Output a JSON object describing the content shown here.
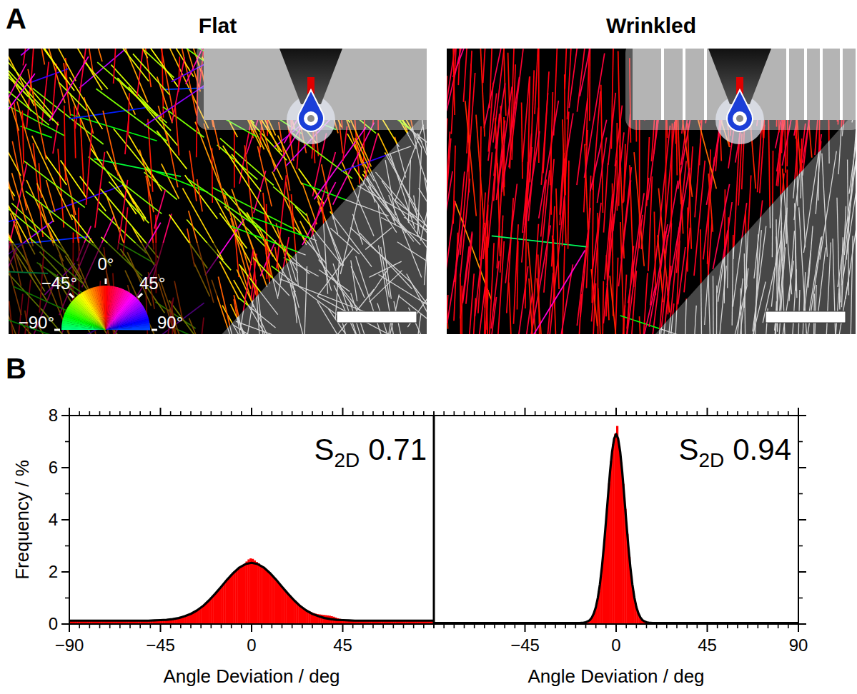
{
  "panel_a": {
    "label": "A",
    "images": [
      {
        "title": "Flat"
      },
      {
        "title": "Wrinkled"
      }
    ],
    "color_wheel": {
      "ticks": [
        {
          "value": 0,
          "label": "0°"
        },
        {
          "value": -45,
          "label": "−45°"
        },
        {
          "value": 45,
          "label": "45°"
        },
        {
          "value": -90,
          "label": "−90°"
        },
        {
          "value": 90,
          "label": "90°"
        }
      ]
    }
  },
  "panel_b": {
    "label": "B"
  },
  "chart_data": [
    {
      "type": "histogram",
      "ylabel": "Frequency / %",
      "xlabel": "Angle Deviation / deg",
      "stat_symbol": "S",
      "stat_subscript": "2D",
      "stat_value": 0.71,
      "xlim": [
        -90,
        90
      ],
      "ylim": [
        0,
        8
      ],
      "xticks": [
        {
          "value": -90,
          "label": "−90"
        },
        {
          "value": -45,
          "label": "−45"
        },
        0,
        45
      ],
      "yticks": [
        0,
        2,
        4,
        6,
        8
      ],
      "color": "#ff0000",
      "bins": [
        -90,
        -89,
        -88,
        -87,
        -86,
        -85,
        -84,
        -83,
        -82,
        -81,
        -80,
        -79,
        -78,
        -77,
        -76,
        -75,
        -74,
        -73,
        -72,
        -71,
        -70,
        -69,
        -68,
        -67,
        -66,
        -65,
        -64,
        -63,
        -62,
        -61,
        -60,
        -59,
        -58,
        -57,
        -56,
        -55,
        -54,
        -53,
        -52,
        -51,
        -50,
        -49,
        -48,
        -47,
        -46,
        -45,
        -44,
        -43,
        -42,
        -41,
        -40,
        -39,
        -38,
        -37,
        -36,
        -35,
        -34,
        -33,
        -32,
        -31,
        -30,
        -29,
        -28,
        -27,
        -26,
        -25,
        -24,
        -23,
        -22,
        -21,
        -20,
        -19,
        -18,
        -17,
        -16,
        -15,
        -14,
        -13,
        -12,
        -11,
        -10,
        -9,
        -8,
        -7,
        -6,
        -5,
        -4,
        -3,
        -2,
        -1,
        0,
        1,
        2,
        3,
        4,
        5,
        6,
        7,
        8,
        9,
        10,
        11,
        12,
        13,
        14,
        15,
        16,
        17,
        18,
        19,
        20,
        21,
        22,
        23,
        24,
        25,
        26,
        27,
        28,
        29,
        30,
        31,
        32,
        33,
        34,
        35,
        36,
        37,
        38,
        39,
        40,
        41,
        42,
        43,
        44,
        45,
        46,
        47,
        48,
        49,
        50,
        51,
        52,
        53,
        54,
        55,
        56,
        57,
        58,
        59,
        60,
        61,
        62,
        63,
        64,
        65,
        66,
        67,
        68,
        69,
        70,
        71,
        72,
        73,
        74,
        75,
        76,
        77,
        78,
        79,
        80,
        81,
        82,
        83,
        84,
        85,
        86,
        87,
        88,
        89,
        90
      ],
      "values": [
        0.12,
        0.13,
        0.12,
        0.14,
        0.13,
        0.12,
        0.13,
        0.14,
        0.12,
        0.13,
        0.13,
        0.12,
        0.14,
        0.13,
        0.12,
        0.13,
        0.13,
        0.14,
        0.12,
        0.13,
        0.14,
        0.13,
        0.12,
        0.13,
        0.14,
        0.13,
        0.12,
        0.14,
        0.13,
        0.13,
        0.14,
        0.13,
        0.14,
        0.12,
        0.14,
        0.13,
        0.15,
        0.13,
        0.14,
        0.14,
        0.13,
        0.14,
        0.14,
        0.15,
        0.14,
        0.15,
        0.16,
        0.15,
        0.17,
        0.17,
        0.19,
        0.2,
        0.21,
        0.22,
        0.23,
        0.26,
        0.28,
        0.3,
        0.34,
        0.38,
        0.4,
        0.46,
        0.49,
        0.56,
        0.59,
        0.67,
        0.72,
        0.81,
        0.86,
        0.96,
        1.02,
        1.12,
        1.19,
        1.3,
        1.37,
        1.49,
        1.56,
        1.67,
        1.74,
        1.85,
        1.91,
        2.02,
        2.06,
        2.16,
        2.18,
        2.27,
        2.31,
        2.4,
        2.48,
        2.52,
        2.5,
        2.44,
        2.38,
        2.33,
        2.26,
        2.2,
        2.12,
        2.05,
        1.98,
        1.9,
        1.82,
        1.74,
        1.64,
        1.55,
        1.47,
        1.37,
        1.28,
        1.19,
        1.1,
        1.03,
        0.95,
        0.88,
        0.8,
        0.74,
        0.67,
        0.62,
        0.57,
        0.52,
        0.48,
        0.45,
        0.42,
        0.4,
        0.38,
        0.37,
        0.36,
        0.35,
        0.34,
        0.33,
        0.32,
        0.3,
        0.28,
        0.25,
        0.22,
        0.2,
        0.18,
        0.17,
        0.16,
        0.15,
        0.15,
        0.14,
        0.15,
        0.14,
        0.13,
        0.14,
        0.15,
        0.14,
        0.13,
        0.14,
        0.14,
        0.13,
        0.15,
        0.14,
        0.13,
        0.14,
        0.13,
        0.14,
        0.15,
        0.13,
        0.14,
        0.13,
        0.14,
        0.13,
        0.12,
        0.14,
        0.13,
        0.13,
        0.14,
        0.12,
        0.13,
        0.14,
        0.12,
        0.13,
        0.13,
        0.12,
        0.14,
        0.13,
        0.12,
        0.13,
        0.12,
        0.13
      ],
      "fit": {
        "color": "#000000",
        "x": [
          -90,
          -87,
          -84,
          -81,
          -78,
          -75,
          -72,
          -69,
          -66,
          -63,
          -60,
          -57,
          -54,
          -51,
          -48,
          -45,
          -42,
          -39,
          -36,
          -33,
          -30,
          -27,
          -24,
          -21,
          -18,
          -15,
          -12,
          -9,
          -6,
          -3,
          0,
          3,
          6,
          9,
          12,
          15,
          18,
          21,
          24,
          27,
          30,
          33,
          36,
          39,
          42,
          45,
          48,
          51,
          54,
          57,
          60,
          63,
          66,
          69,
          72,
          75,
          78,
          81,
          84,
          87,
          90
        ],
        "values": [
          0.13,
          0.13,
          0.13,
          0.13,
          0.13,
          0.13,
          0.13,
          0.13,
          0.13,
          0.13,
          0.13,
          0.13,
          0.13,
          0.13,
          0.14,
          0.15,
          0.16,
          0.19,
          0.23,
          0.3,
          0.39,
          0.52,
          0.69,
          0.91,
          1.16,
          1.43,
          1.71,
          1.96,
          2.17,
          2.3,
          2.35,
          2.3,
          2.17,
          1.96,
          1.71,
          1.43,
          1.16,
          0.91,
          0.69,
          0.52,
          0.39,
          0.3,
          0.23,
          0.19,
          0.16,
          0.15,
          0.14,
          0.13,
          0.13,
          0.13,
          0.13,
          0.13,
          0.13,
          0.13,
          0.13,
          0.13,
          0.13,
          0.13,
          0.13,
          0.13,
          0.13
        ]
      }
    },
    {
      "type": "histogram",
      "xlabel": "Angle Deviation / deg",
      "stat_symbol": "S",
      "stat_subscript": "2D",
      "stat_value": 0.94,
      "xlim": [
        -90,
        90
      ],
      "ylim": [
        0,
        8
      ],
      "xticks": [
        {
          "value": -45,
          "label": "−45"
        },
        0,
        45,
        90
      ],
      "yticks": [
        0,
        2,
        4,
        6,
        8
      ],
      "tick_labels": "x",
      "color": "#ff0000",
      "bins": [
        -90,
        -89,
        -88,
        -87,
        -86,
        -85,
        -84,
        -83,
        -82,
        -81,
        -80,
        -79,
        -78,
        -77,
        -76,
        -75,
        -74,
        -73,
        -72,
        -71,
        -70,
        -69,
        -68,
        -67,
        -66,
        -65,
        -64,
        -63,
        -62,
        -61,
        -60,
        -59,
        -58,
        -57,
        -56,
        -55,
        -54,
        -53,
        -52,
        -51,
        -50,
        -49,
        -48,
        -47,
        -46,
        -45,
        -44,
        -43,
        -42,
        -41,
        -40,
        -39,
        -38,
        -37,
        -36,
        -35,
        -34,
        -33,
        -32,
        -31,
        -30,
        -29,
        -28,
        -27,
        -26,
        -25,
        -24,
        -23,
        -22,
        -21,
        -20,
        -19,
        -18,
        -17,
        -16,
        -15,
        -14,
        -13,
        -12,
        -11,
        -10,
        -9,
        -8,
        -7,
        -6,
        -5,
        -4,
        -3,
        -2,
        -1,
        0,
        1,
        2,
        3,
        4,
        5,
        6,
        7,
        8,
        9,
        10,
        11,
        12,
        13,
        14,
        15,
        16,
        17,
        18,
        19,
        20,
        21,
        22,
        23,
        24,
        25,
        26,
        27,
        28,
        29,
        30,
        31,
        32,
        33,
        34,
        35,
        36,
        37,
        38,
        39,
        40,
        41,
        42,
        43,
        44,
        45,
        46,
        47,
        48,
        49,
        50,
        51,
        52,
        53,
        54,
        55,
        56,
        57,
        58,
        59,
        60,
        61,
        62,
        63,
        64,
        65,
        66,
        67,
        68,
        69,
        70,
        71,
        72,
        73,
        74,
        75,
        76,
        77,
        78,
        79,
        80,
        81,
        82,
        83,
        84,
        85,
        86,
        87,
        88,
        89,
        90
      ],
      "values": [
        0.03,
        0.02,
        0.03,
        0.04,
        0.03,
        0.03,
        0.02,
        0.03,
        0.04,
        0.03,
        0.02,
        0.03,
        0.03,
        0.04,
        0.02,
        0.03,
        0.03,
        0.02,
        0.03,
        0.04,
        0.03,
        0.03,
        0.02,
        0.03,
        0.04,
        0.03,
        0.02,
        0.03,
        0.03,
        0.04,
        0.03,
        0.02,
        0.03,
        0.03,
        0.04,
        0.03,
        0.03,
        0.02,
        0.03,
        0.03,
        0.04,
        0.03,
        0.02,
        0.03,
        0.03,
        0.04,
        0.03,
        0.02,
        0.03,
        0.03,
        0.03,
        0.04,
        0.03,
        0.03,
        0.02,
        0.03,
        0.04,
        0.03,
        0.03,
        0.02,
        0.03,
        0.03,
        0.04,
        0.03,
        0.03,
        0.02,
        0.03,
        0.04,
        0.03,
        0.03,
        0.04,
        0.03,
        0.04,
        0.05,
        0.06,
        0.08,
        0.12,
        0.19,
        0.32,
        0.52,
        0.82,
        1.26,
        1.85,
        2.59,
        3.48,
        4.44,
        5.4,
        6.25,
        6.9,
        7.3,
        7.6,
        6.85,
        6.2,
        5.38,
        4.42,
        3.46,
        2.58,
        1.84,
        1.25,
        0.81,
        0.51,
        0.31,
        0.19,
        0.12,
        0.08,
        0.06,
        0.05,
        0.03,
        0.03,
        0.02,
        0.03,
        0.04,
        0.03,
        0.02,
        0.03,
        0.03,
        0.04,
        0.03,
        0.02,
        0.03,
        0.04,
        0.03,
        0.03,
        0.02,
        0.03,
        0.04,
        0.03,
        0.04,
        0.03,
        0.02,
        0.03,
        0.03,
        0.04,
        0.03,
        0.02,
        0.03,
        0.03,
        0.02,
        0.03,
        0.03,
        0.04,
        0.02,
        0.03,
        0.03,
        0.02,
        0.03,
        0.04,
        0.03,
        0.03,
        0.04,
        0.03,
        0.03,
        0.02,
        0.03,
        0.04,
        0.03,
        0.03,
        0.03,
        0.02,
        0.03,
        0.03,
        0.04,
        0.03,
        0.03,
        0.02,
        0.03,
        0.03,
        0.03,
        0.04,
        0.03,
        0.03,
        0.02,
        0.03,
        0.04,
        0.03,
        0.03,
        0.02,
        0.03,
        0.08,
        0.03
      ],
      "fit": {
        "color": "#000000",
        "x": [
          -90,
          -60,
          -30,
          -20,
          -18,
          -16,
          -15,
          -14,
          -13,
          -12,
          -11,
          -10,
          -9,
          -8,
          -7,
          -6,
          -5,
          -4,
          -3,
          -2,
          -1,
          0,
          1,
          2,
          3,
          4,
          5,
          6,
          7,
          8,
          9,
          10,
          11,
          12,
          13,
          14,
          15,
          16,
          18,
          20,
          30,
          60,
          90
        ],
        "values": [
          0.04,
          0.04,
          0.04,
          0.04,
          0.04,
          0.05,
          0.07,
          0.1,
          0.15,
          0.25,
          0.41,
          0.65,
          1.02,
          1.53,
          2.2,
          3.02,
          3.95,
          4.92,
          5.85,
          6.61,
          7.11,
          7.29,
          7.11,
          6.61,
          5.85,
          4.92,
          3.95,
          3.02,
          2.2,
          1.53,
          1.02,
          0.65,
          0.41,
          0.25,
          0.15,
          0.1,
          0.07,
          0.05,
          0.04,
          0.04,
          0.04,
          0.04,
          0.04
        ]
      }
    }
  ]
}
